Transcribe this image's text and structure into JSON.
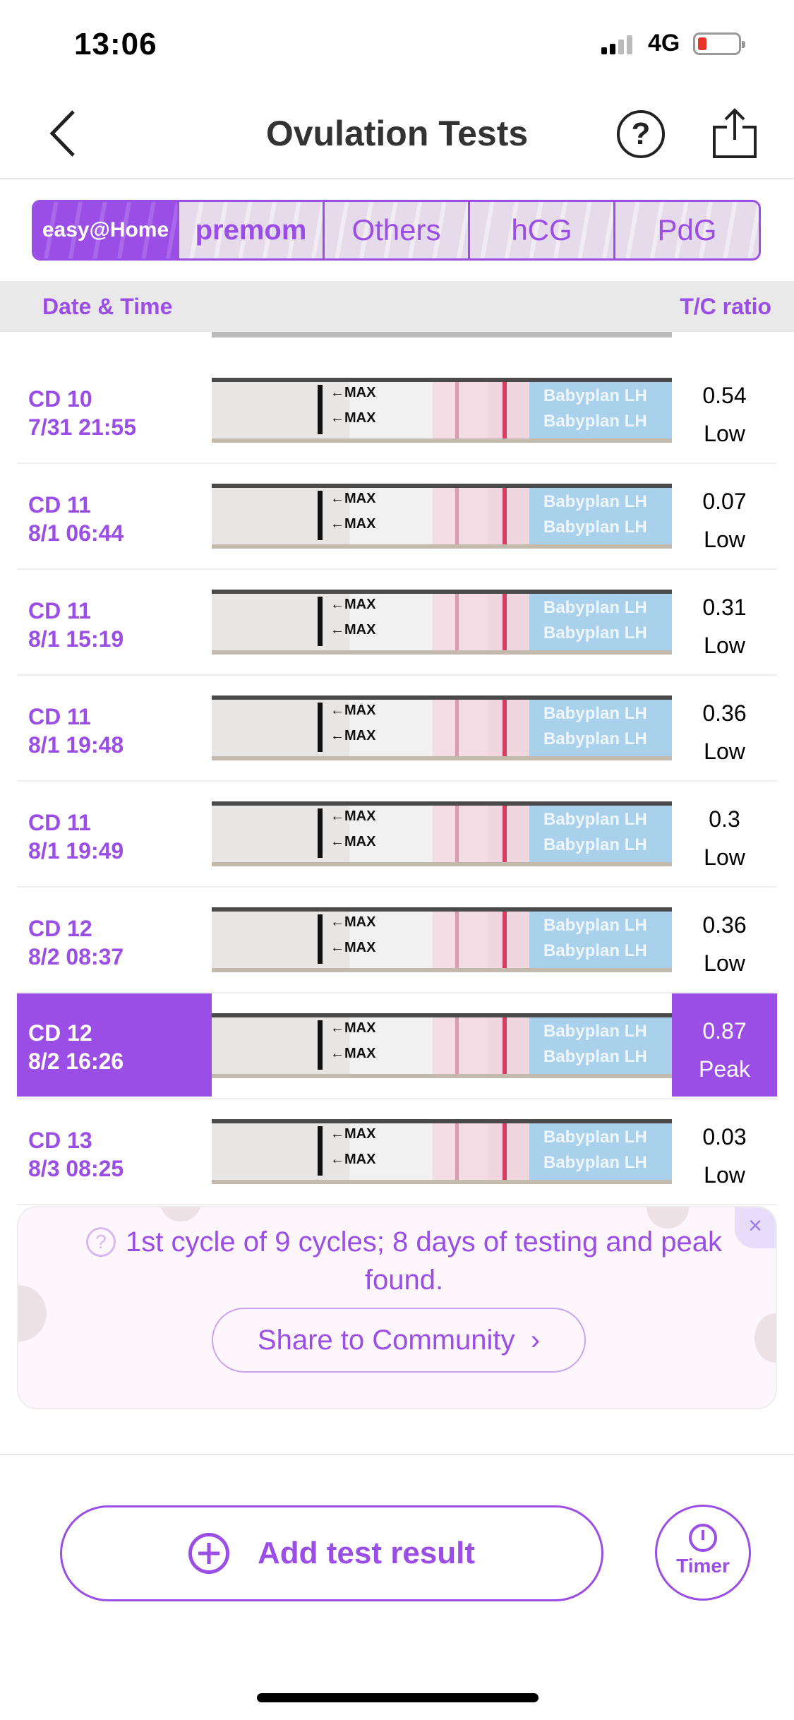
{
  "status_bar": {
    "time": "13:06",
    "network": "4G"
  },
  "nav": {
    "title": "Ovulation Tests",
    "back_icon": "chevron-left",
    "help_icon": "question-circle",
    "share_icon": "share-up"
  },
  "tabs": [
    {
      "label": "easy@Home",
      "selected": true
    },
    {
      "label": "premom"
    },
    {
      "label": "Others"
    },
    {
      "label": "hCG"
    },
    {
      "label": "PdG"
    }
  ],
  "table": {
    "col_date": "Date & Time",
    "col_ratio": "T/C ratio"
  },
  "strip": {
    "max_label": "←MAX",
    "brand_label": "Babyplan LH"
  },
  "rows": [
    {
      "cd": "CD 10",
      "datetime": "7/31 21:55",
      "ratio": "0.54",
      "level": "Low"
    },
    {
      "cd": "CD 11",
      "datetime": "8/1 06:44",
      "ratio": "0.07",
      "level": "Low"
    },
    {
      "cd": "CD 11",
      "datetime": "8/1 15:19",
      "ratio": "0.31",
      "level": "Low"
    },
    {
      "cd": "CD 11",
      "datetime": "8/1 19:48",
      "ratio": "0.36",
      "level": "Low"
    },
    {
      "cd": "CD 11",
      "datetime": "8/1 19:49",
      "ratio": "0.3",
      "level": "Low"
    },
    {
      "cd": "CD 12",
      "datetime": "8/2 08:37",
      "ratio": "0.36",
      "level": "Low"
    },
    {
      "cd": "CD 12",
      "datetime": "8/2 16:26",
      "ratio": "0.87",
      "level": "Peak",
      "selected": true
    },
    {
      "cd": "CD 13",
      "datetime": "8/3 08:25",
      "ratio": "0.03",
      "level": "Low"
    }
  ],
  "banner": {
    "message": "1st cycle of 9 cycles; 8 days of testing and peak found.",
    "share_label": "Share to Community",
    "close": "×",
    "help": "?"
  },
  "footer": {
    "add_label": "Add test result",
    "timer_label": "Timer"
  },
  "colors": {
    "accent": "#9b4ee6"
  }
}
